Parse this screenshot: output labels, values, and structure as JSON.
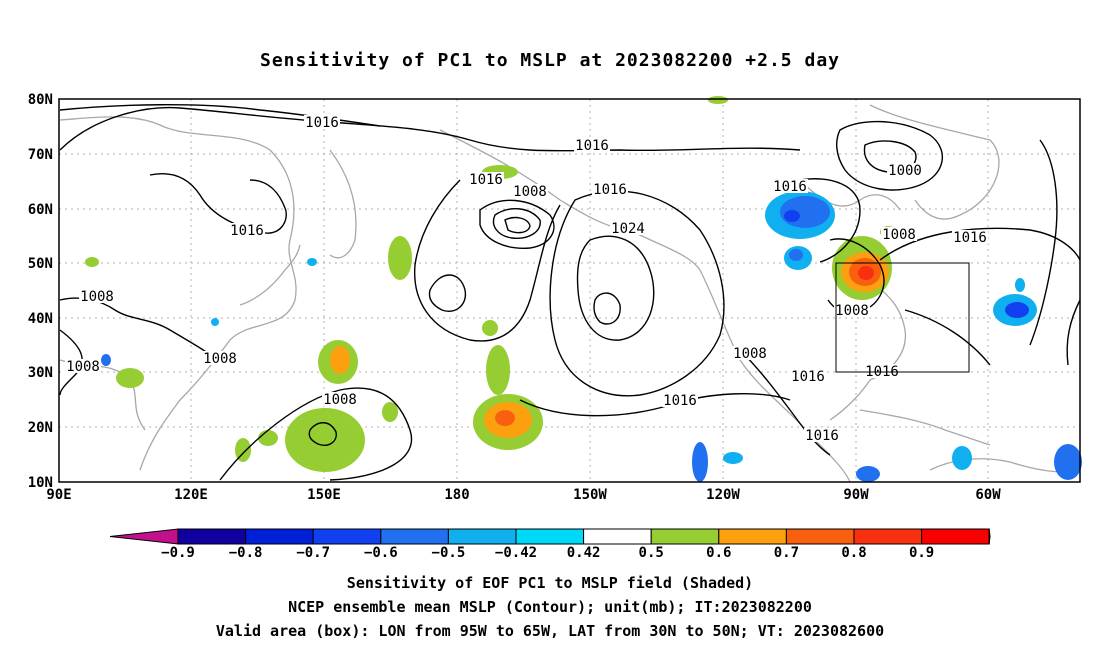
{
  "title": "Sensitivity of PC1 to MSLP at 2023082200 +2.5 day",
  "map": {
    "lon_labels": [
      "90E",
      "120E",
      "150E",
      "180",
      "150W",
      "120W",
      "90W",
      "60W"
    ],
    "lat_labels": [
      "80N",
      "70N",
      "60N",
      "50N",
      "40N",
      "30N",
      "20N",
      "10N"
    ],
    "extent": {
      "lon_start": "90E",
      "lon_end": "45W",
      "lat_start": "10N",
      "lat_end": "80N"
    },
    "grid": true,
    "contour_labels": [
      "1016",
      "1016",
      "1016",
      "1008",
      "1016",
      "1016",
      "1024",
      "1016",
      "1000",
      "1008",
      "1016",
      "1008",
      "1008",
      "1008",
      "1008",
      "1008",
      "1016",
      "1016",
      "1016",
      "1016"
    ],
    "valid_box": {
      "lon_min": -95,
      "lon_max": -65,
      "lat_min": 30,
      "lat_max": 50
    }
  },
  "colorbar": {
    "labels": [
      "−0.9",
      "−0.8",
      "−0.7",
      "−0.6",
      "−0.5",
      "−0.42",
      "0.42",
      "0.5",
      "0.6",
      "0.7",
      "0.8",
      "0.9"
    ],
    "colors": [
      "#c0108a",
      "#1000a0",
      "#0020d8",
      "#1040f0",
      "#2070f0",
      "#10b0f0",
      "#00d8f8",
      "#ffffff",
      "#96cd32",
      "#fca010",
      "#f86010",
      "#f83010",
      "#f80000",
      "#f8a0c8"
    ]
  },
  "captions": {
    "line1": "Sensitivity of EOF PC1 to MSLP field (Shaded)",
    "line2": "NCEP ensemble mean MSLP (Contour); unit(mb); IT:2023082200",
    "line3": "Valid area (box): LON from 95W to 65W, LAT from 30N to 50N; VT: 2023082600"
  }
}
